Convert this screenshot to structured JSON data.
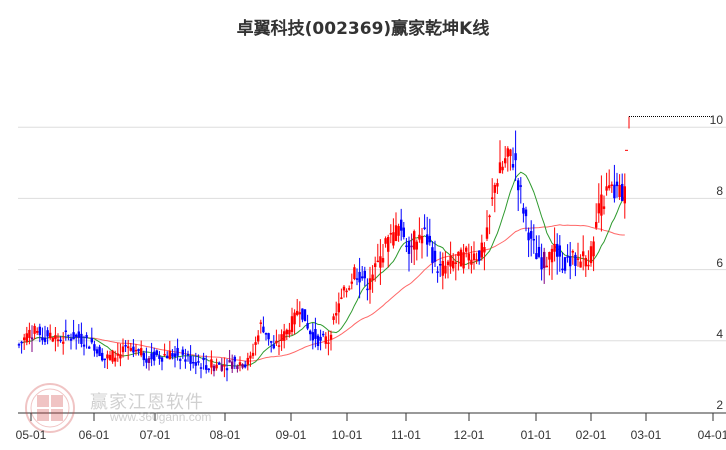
{
  "title": "卓翼科技(002369)赢家乾坤K线",
  "watermark": {
    "text": "赢家江恩软件",
    "url": "www.360gann.com",
    "logo_chars": [
      "江",
      "赢",
      "恩",
      "家"
    ]
  },
  "colors": {
    "up": "#ff0000",
    "down": "#0000ff",
    "neutral": "#800080",
    "ma_short": "#2e9a2e",
    "ma_long": "#ff4d4d",
    "grid": "#dddddd",
    "axis": "#333333"
  },
  "chart_data": {
    "type": "candlestick",
    "title": "卓翼科技(002369)赢家乾坤K线",
    "xlabel": "",
    "ylabel": "",
    "ylim": [
      2,
      10
    ],
    "y_ticks": [
      2,
      4,
      6,
      8,
      10
    ],
    "x_ticks": [
      "05-01",
      "06-01",
      "07-01",
      "08-01",
      "09-01",
      "10-01",
      "11-01",
      "12-01",
      "01-01",
      "02-01",
      "03-01",
      "04-01"
    ],
    "grid": true,
    "legend": [],
    "series": [
      {
        "name": "K线",
        "type": "candlestick"
      },
      {
        "name": "短期均线",
        "type": "line",
        "color": "green"
      },
      {
        "name": "长期均线",
        "type": "line",
        "color": "red"
      }
    ],
    "approx_close_path": [
      {
        "month": "05-01",
        "price": 4.1
      },
      {
        "month": "06-01",
        "price": 3.7
      },
      {
        "month": "07-01",
        "price": 3.6
      },
      {
        "month": "08-01",
        "price": 3.4
      },
      {
        "month": "09-01",
        "price": 4.2
      },
      {
        "month": "10-01",
        "price": 5.6
      },
      {
        "month": "11-01",
        "price": 7.0
      },
      {
        "month": "12-01",
        "price": 6.6
      },
      {
        "month": "12-20",
        "price": 9.3
      },
      {
        "month": "01-01",
        "price": 6.5
      },
      {
        "month": "02-01",
        "price": 6.3
      },
      {
        "month": "02-20",
        "price": 8.3
      }
    ],
    "annotations": [
      {
        "type": "dashed-line",
        "price": 10.3,
        "from": "02-25",
        "to": "04-01"
      }
    ]
  }
}
